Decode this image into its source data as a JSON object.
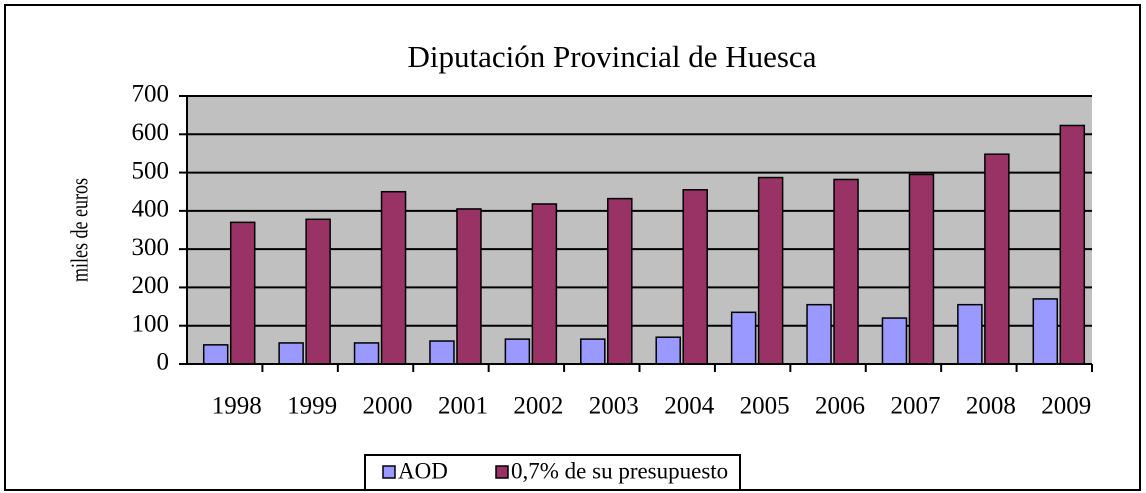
{
  "chart_data": {
    "type": "bar",
    "title": "Diputación Provincial de Huesca",
    "y_label": "miles de euros",
    "categories": [
      "1998",
      "1999",
      "2000",
      "2001",
      "2002",
      "2003",
      "2004",
      "2005",
      "2006",
      "2007",
      "2008",
      "2009"
    ],
    "series": [
      {
        "name": "AOD",
        "color": "#9999ff",
        "values": [
          50,
          55,
          55,
          60,
          65,
          65,
          70,
          135,
          155,
          120,
          155,
          170
        ]
      },
      {
        "name": "0,7% de su presupuesto",
        "color": "#993366",
        "values": [
          370,
          378,
          450,
          405,
          418,
          432,
          455,
          487,
          482,
          495,
          548,
          623
        ]
      }
    ],
    "ylim": [
      0,
      700
    ],
    "yticks": [
      0,
      100,
      200,
      300,
      400,
      500,
      600,
      700
    ],
    "grid": true,
    "legend": "bottom"
  }
}
